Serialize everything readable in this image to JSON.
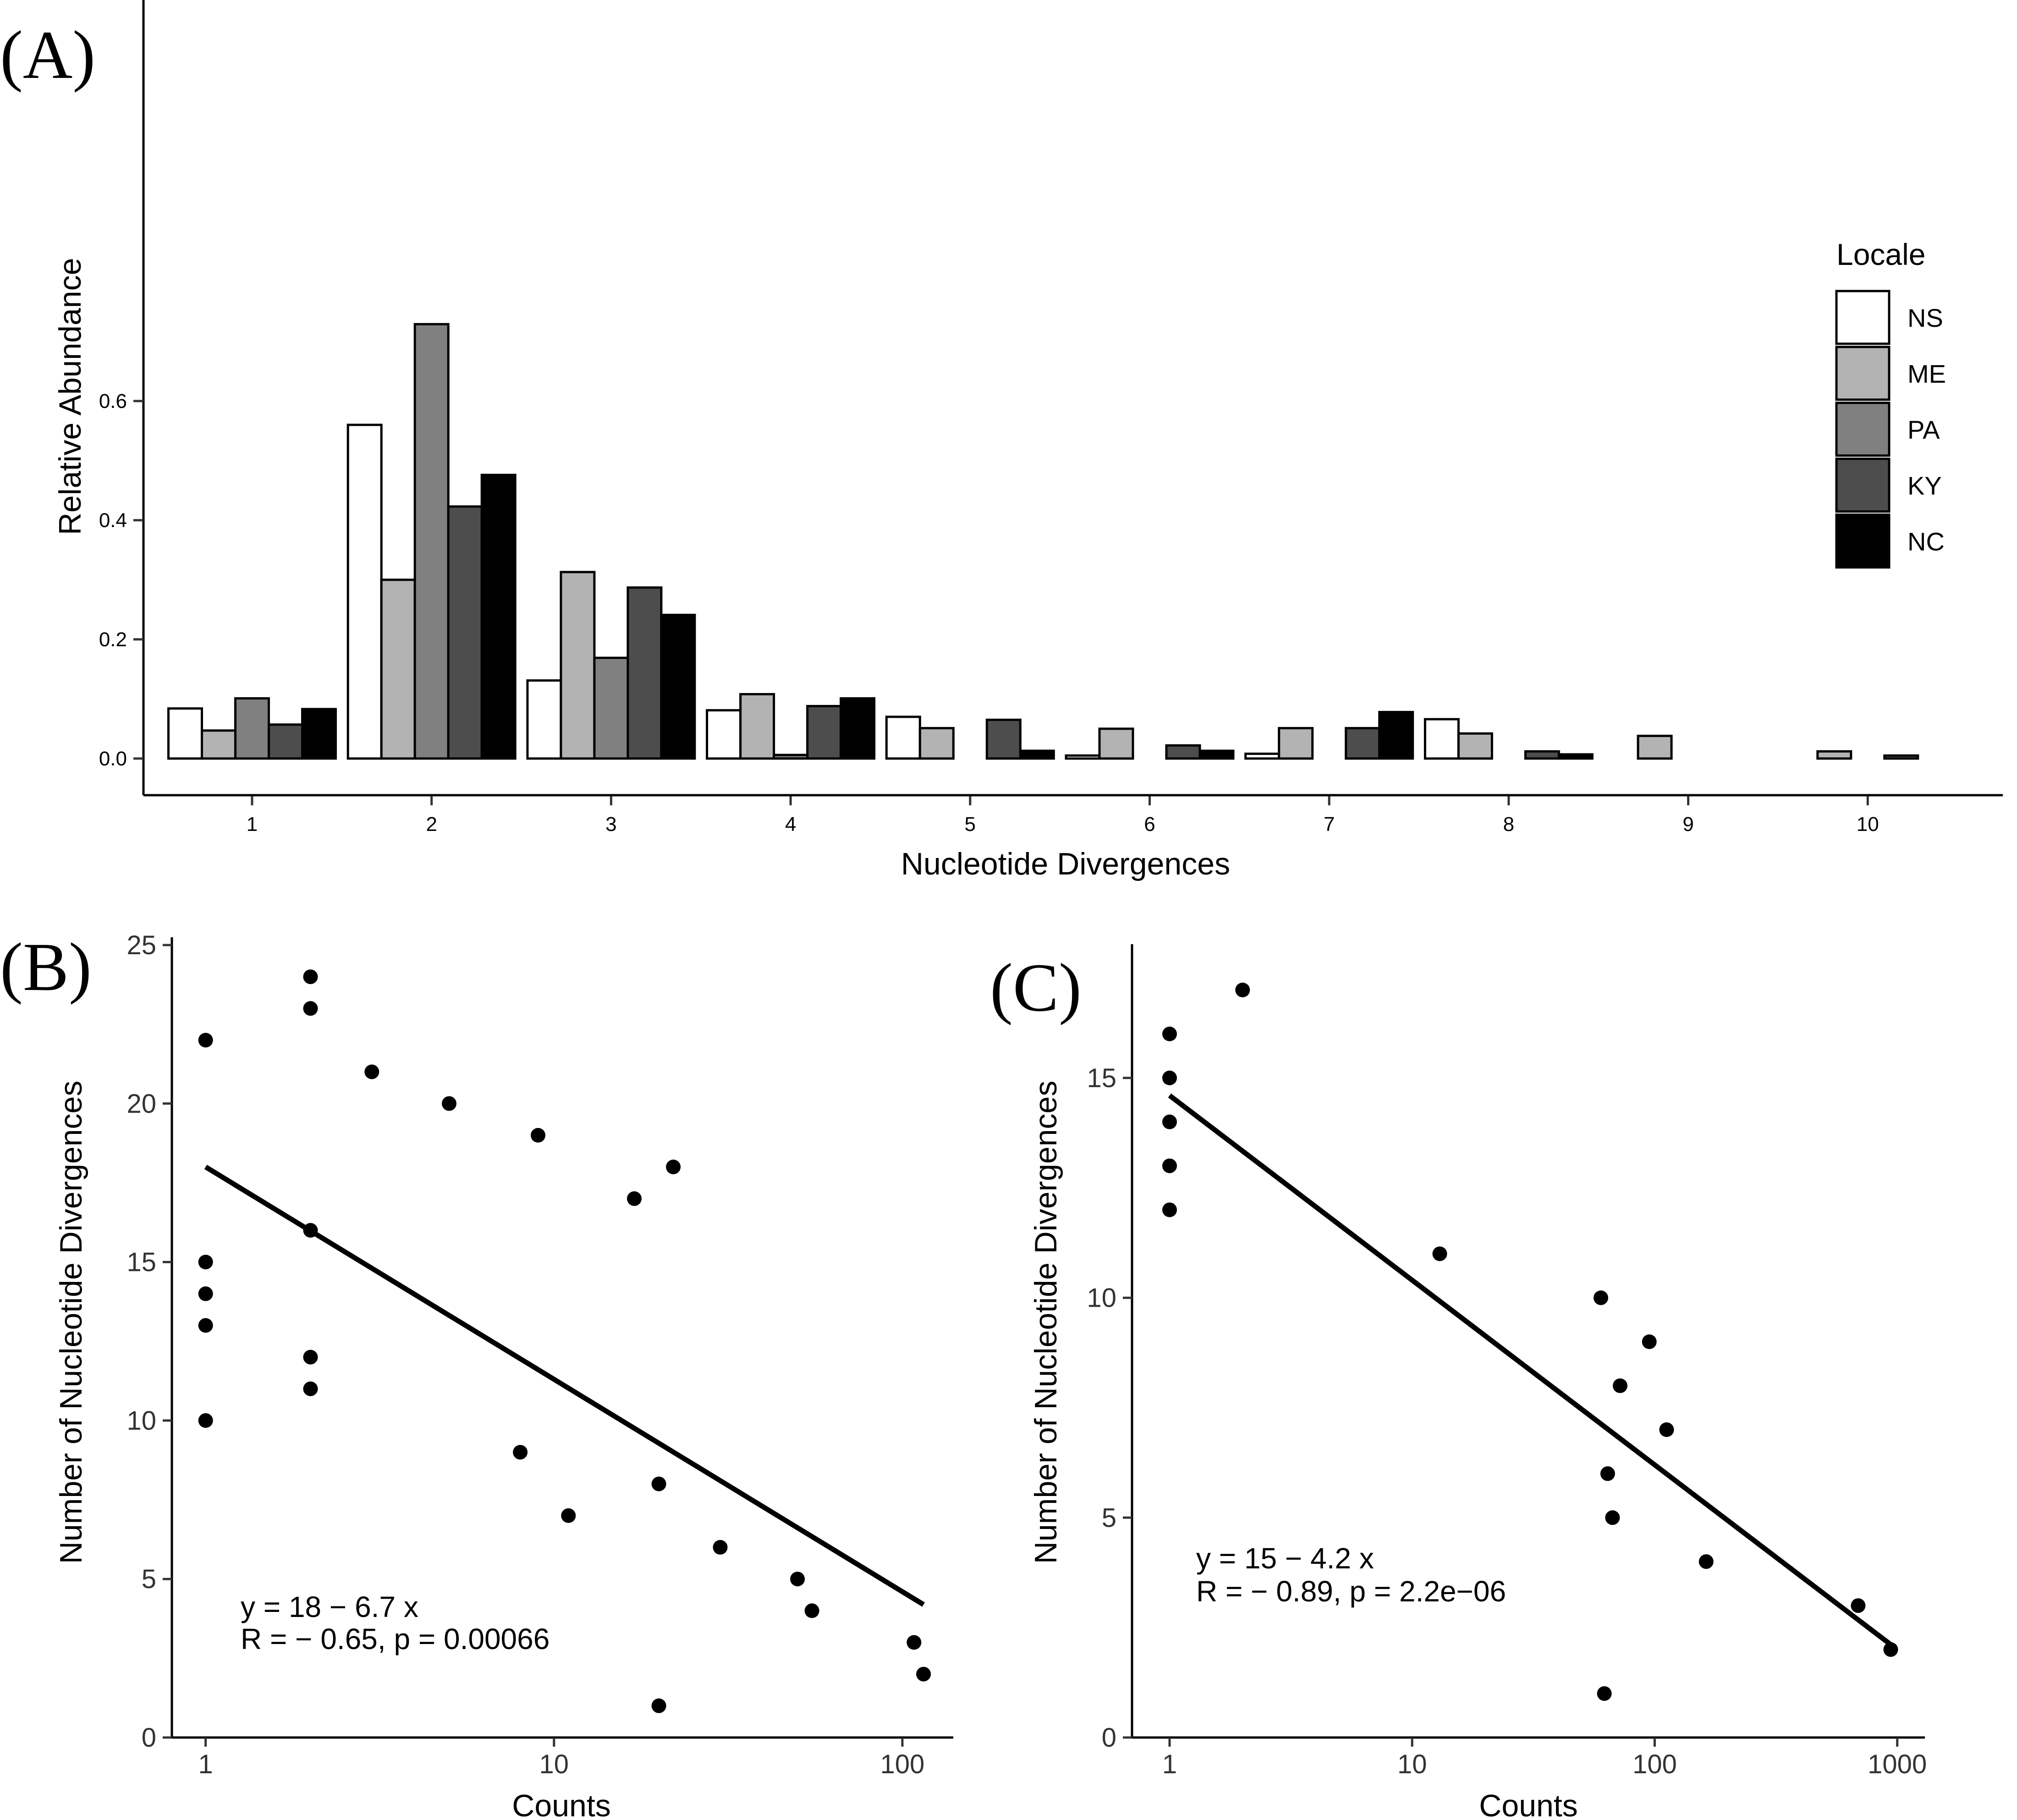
{
  "panels": {
    "a": {
      "label": "(A)"
    },
    "b": {
      "label": "(B)"
    },
    "c": {
      "label": "(C)"
    }
  },
  "chart_data": [
    {
      "id": "A",
      "type": "bar",
      "xlabel": "Nucleotide Divergences",
      "ylabel": "Relative Abundance",
      "categories": [
        "1",
        "2",
        "3",
        "4",
        "5",
        "6",
        "7",
        "8",
        "9",
        "10"
      ],
      "ylim": [
        0,
        0.73
      ],
      "yticks": [
        0.0,
        0.2,
        0.4,
        0.6
      ],
      "ytick_labels": [
        "0.0",
        "0.2",
        "0.4",
        "0.6"
      ],
      "grid": false,
      "legend": {
        "title": "Locale",
        "position": "right"
      },
      "series": [
        {
          "name": "NS",
          "color": "#ffffff",
          "values": [
            0.084,
            0.56,
            0.131,
            0.081,
            0.07,
            0.005,
            0.008,
            0.066,
            0.0,
            0.0
          ]
        },
        {
          "name": "ME",
          "color": "#b3b3b3",
          "values": [
            0.047,
            0.3,
            0.313,
            0.108,
            0.051,
            0.05,
            0.051,
            0.042,
            0.038,
            0.012
          ]
        },
        {
          "name": "PA",
          "color": "#808080",
          "values": [
            0.101,
            0.729,
            0.169,
            0.006,
            0.0,
            0.0,
            0.0,
            0.0,
            0.0,
            0.0
          ]
        },
        {
          "name": "KY",
          "color": "#4d4d4d",
          "values": [
            0.057,
            0.423,
            0.287,
            0.088,
            0.065,
            0.022,
            0.051,
            0.012,
            0.0,
            0.005
          ]
        },
        {
          "name": "NC",
          "color": "#000000",
          "values": [
            0.083,
            0.476,
            0.241,
            0.101,
            0.013,
            0.013,
            0.078,
            0.007,
            0.0,
            0.0
          ]
        }
      ]
    },
    {
      "id": "B",
      "type": "scatter",
      "xlabel": "Counts",
      "ylabel": "Number of Nucleotide Divergences",
      "xscale": "log",
      "xlim": [
        0.8,
        140
      ],
      "ylim": [
        0,
        25
      ],
      "xticks": [
        1,
        10,
        100
      ],
      "xtick_labels": [
        "1",
        "10",
        "100"
      ],
      "yticks": [
        0,
        5,
        10,
        15,
        20,
        25
      ],
      "ytick_labels": [
        "0",
        "5",
        "10",
        "15",
        "20",
        "25"
      ],
      "grid": false,
      "points": [
        [
          1,
          22
        ],
        [
          1,
          15
        ],
        [
          1,
          14
        ],
        [
          1,
          13
        ],
        [
          1,
          10
        ],
        [
          2,
          24
        ],
        [
          2,
          23
        ],
        [
          2,
          16
        ],
        [
          2,
          12
        ],
        [
          2,
          11
        ],
        [
          3,
          21
        ],
        [
          5,
          20
        ],
        [
          9,
          19
        ],
        [
          17,
          17
        ],
        [
          22,
          18
        ],
        [
          8,
          9
        ],
        [
          11,
          7
        ],
        [
          20,
          8
        ],
        [
          20,
          1
        ],
        [
          30,
          6
        ],
        [
          50,
          5
        ],
        [
          55,
          4
        ],
        [
          108,
          3
        ],
        [
          115,
          2
        ]
      ],
      "fit": {
        "x_range": [
          1,
          115
        ],
        "intercept": 18,
        "slope": -6.7
      },
      "annotation": [
        "y = 18 − 6.7 x",
        "R = − 0.65, p = 0.00066"
      ]
    },
    {
      "id": "C",
      "type": "scatter",
      "xlabel": "Counts",
      "ylabel": "Number of Nucleotide Divergences",
      "xscale": "log",
      "xlim": [
        0.7,
        1300
      ],
      "ylim": [
        0,
        17.5
      ],
      "xticks": [
        1,
        10,
        100,
        1000
      ],
      "xtick_labels": [
        "1",
        "10",
        "100",
        "1000"
      ],
      "yticks": [
        0,
        5,
        10,
        15
      ],
      "ytick_labels": [
        "0",
        "5",
        "10",
        "15"
      ],
      "grid": false,
      "points": [
        [
          1,
          16
        ],
        [
          1,
          15
        ],
        [
          1,
          14
        ],
        [
          1,
          13
        ],
        [
          1,
          12
        ],
        [
          2,
          17
        ],
        [
          13,
          11
        ],
        [
          60,
          10
        ],
        [
          95,
          9
        ],
        [
          72,
          8
        ],
        [
          112,
          7
        ],
        [
          64,
          6
        ],
        [
          67,
          5
        ],
        [
          163,
          4
        ],
        [
          690,
          3
        ],
        [
          940,
          2
        ],
        [
          62,
          1
        ]
      ],
      "fit": {
        "x_range": [
          1,
          940
        ],
        "intercept": 14.6,
        "slope": -4.2
      },
      "annotation": [
        "y = 15 − 4.2 x",
        "R = − 0.89, p = 2.2e−06"
      ]
    }
  ]
}
